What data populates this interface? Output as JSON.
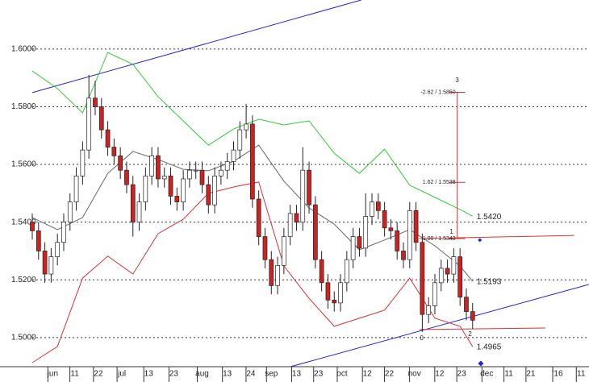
{
  "chart_data": {
    "type": "candlestick",
    "up_color": "#ffffff",
    "down_color": "#cc2222",
    "xlim": [
      0,
      177
    ],
    "ylim": [
      1.4899,
      1.617
    ],
    "yticks": [
      {
        "value": 1.5,
        "label": "1.5000"
      },
      {
        "value": 1.52,
        "label": "1.5200"
      },
      {
        "value": 1.54,
        "label": "1.5400"
      },
      {
        "value": 1.56,
        "label": "1.5600"
      },
      {
        "value": 1.58,
        "label": "1.5800"
      },
      {
        "value": 1.6,
        "label": "1.6000"
      }
    ],
    "xticks": [
      {
        "value": 6.5,
        "label": "jun"
      },
      {
        "value": 13.5,
        "label": "11"
      },
      {
        "value": 21,
        "label": "22"
      },
      {
        "value": 28.5,
        "label": "jul"
      },
      {
        "value": 37,
        "label": "13"
      },
      {
        "value": 45,
        "label": "23"
      },
      {
        "value": 54,
        "label": "aug"
      },
      {
        "value": 62,
        "label": "13"
      },
      {
        "value": 69.5,
        "label": "24"
      },
      {
        "value": 76,
        "label": "sep"
      },
      {
        "value": 84,
        "label": "13"
      },
      {
        "value": 91,
        "label": "23"
      },
      {
        "value": 98.5,
        "label": "oct"
      },
      {
        "value": 106.5,
        "label": "12"
      },
      {
        "value": 113.5,
        "label": "22"
      },
      {
        "value": 121.5,
        "label": "nov"
      },
      {
        "value": 129.5,
        "label": "12"
      },
      {
        "value": 136.5,
        "label": "23"
      },
      {
        "value": 144.5,
        "label": "dec"
      },
      {
        "value": 151.5,
        "label": "11"
      },
      {
        "value": 158.5,
        "label": "21"
      },
      {
        "value": 167,
        "label": "'16"
      },
      {
        "value": 174.5,
        "label": "11"
      }
    ],
    "grid": true,
    "x": [
      0,
      2,
      4,
      6,
      8,
      10,
      12,
      14,
      16,
      18,
      20,
      22,
      24,
      26,
      28,
      30,
      32,
      34,
      36,
      38,
      40,
      42,
      44,
      46,
      48,
      50,
      52,
      54,
      56,
      58,
      60,
      62,
      64,
      66,
      68,
      70,
      72,
      74,
      76,
      78,
      80,
      82,
      84,
      86,
      88,
      90,
      92,
      94,
      96,
      98,
      100,
      102,
      104,
      106,
      108,
      110,
      112,
      114,
      116,
      118,
      120,
      122,
      124,
      126,
      128,
      130,
      132,
      134,
      136,
      138,
      140
    ],
    "open": [
      1.54,
      1.537,
      1.53,
      1.522,
      1.528,
      1.533,
      1.54,
      1.547,
      1.556,
      1.565,
      1.583,
      1.58,
      1.572,
      1.566,
      1.563,
      1.558,
      1.553,
      1.54,
      1.547,
      1.556,
      1.563,
      1.555,
      1.556,
      1.549,
      1.547,
      1.555,
      1.558,
      1.558,
      1.553,
      1.546,
      1.556,
      1.558,
      1.561,
      1.565,
      1.572,
      1.574,
      1.548,
      1.535,
      1.527,
      1.518,
      1.525,
      1.535,
      1.543,
      1.54,
      1.558,
      1.546,
      1.527,
      1.519,
      1.513,
      1.512,
      1.519,
      1.527,
      1.535,
      1.531,
      1.542,
      1.547,
      1.544,
      1.538,
      1.537,
      1.53,
      1.527,
      1.544,
      1.533,
      1.508,
      1.511,
      1.519,
      1.524,
      1.522,
      1.528,
      1.514,
      1.509
    ],
    "high": [
      1.543,
      1.54,
      1.533,
      1.531,
      1.536,
      1.543,
      1.55,
      1.559,
      1.568,
      1.591,
      1.589,
      1.583,
      1.575,
      1.569,
      1.566,
      1.561,
      1.556,
      1.55,
      1.559,
      1.566,
      1.566,
      1.559,
      1.559,
      1.552,
      1.558,
      1.561,
      1.561,
      1.561,
      1.556,
      1.559,
      1.561,
      1.564,
      1.568,
      1.575,
      1.581,
      1.577,
      1.551,
      1.538,
      1.53,
      1.528,
      1.538,
      1.546,
      1.546,
      1.566,
      1.561,
      1.549,
      1.53,
      1.522,
      1.516,
      1.522,
      1.53,
      1.538,
      1.538,
      1.55,
      1.55,
      1.55,
      1.547,
      1.541,
      1.54,
      1.533,
      1.547,
      1.547,
      1.536,
      1.514,
      1.522,
      1.527,
      1.527,
      1.531,
      1.531,
      1.517,
      1.512
    ],
    "low": [
      1.534,
      1.527,
      1.519,
      1.519,
      1.525,
      1.53,
      1.537,
      1.544,
      1.553,
      1.562,
      1.577,
      1.569,
      1.563,
      1.56,
      1.555,
      1.55,
      1.535,
      1.537,
      1.544,
      1.553,
      1.552,
      1.552,
      1.546,
      1.544,
      1.544,
      1.552,
      1.555,
      1.55,
      1.543,
      1.543,
      1.553,
      1.555,
      1.558,
      1.562,
      1.569,
      1.545,
      1.532,
      1.524,
      1.515,
      1.515,
      1.522,
      1.532,
      1.537,
      1.537,
      1.543,
      1.524,
      1.516,
      1.51,
      1.509,
      1.509,
      1.516,
      1.524,
      1.528,
      1.528,
      1.539,
      1.541,
      1.535,
      1.534,
      1.527,
      1.524,
      1.524,
      1.53,
      1.502,
      1.505,
      1.508,
      1.516,
      1.519,
      1.519,
      1.511,
      1.506,
      1.503
    ],
    "close": [
      1.537,
      1.53,
      1.522,
      1.528,
      1.533,
      1.54,
      1.547,
      1.556,
      1.565,
      1.583,
      1.58,
      1.572,
      1.566,
      1.563,
      1.558,
      1.553,
      1.54,
      1.547,
      1.556,
      1.563,
      1.555,
      1.556,
      1.549,
      1.547,
      1.555,
      1.558,
      1.558,
      1.553,
      1.546,
      1.556,
      1.558,
      1.561,
      1.565,
      1.572,
      1.574,
      1.548,
      1.535,
      1.527,
      1.518,
      1.525,
      1.535,
      1.543,
      1.54,
      1.558,
      1.546,
      1.527,
      1.519,
      1.513,
      1.512,
      1.519,
      1.527,
      1.535,
      1.531,
      1.542,
      1.547,
      1.544,
      1.538,
      1.537,
      1.53,
      1.527,
      1.544,
      1.533,
      1.508,
      1.511,
      1.519,
      1.524,
      1.522,
      1.528,
      1.514,
      1.509,
      1.506
    ],
    "overlays": [
      {
        "color": "#33cc33",
        "x": [
          0,
          8,
          16,
          24,
          32,
          40,
          48,
          56,
          64,
          72,
          80,
          88,
          96,
          104,
          112,
          120,
          128,
          136,
          140
        ],
        "values": [
          1.5924,
          1.5863,
          1.5779,
          1.5988,
          1.5947,
          1.5835,
          1.5751,
          1.5667,
          1.5723,
          1.5757,
          1.5737,
          1.5751,
          1.5639,
          1.5569,
          1.5653,
          1.5528,
          1.5486,
          1.5444,
          1.5421
        ],
        "end_label": "1.5420"
      },
      {
        "color": "#666666",
        "x": [
          0,
          8,
          16,
          24,
          32,
          40,
          48,
          56,
          64,
          72,
          80,
          88,
          96,
          104,
          112,
          120,
          128,
          136,
          140
        ],
        "values": [
          1.5416,
          1.5374,
          1.5416,
          1.5569,
          1.5645,
          1.5617,
          1.5583,
          1.5578,
          1.5611,
          1.5667,
          1.5542,
          1.5449,
          1.5393,
          1.5304,
          1.5338,
          1.5374,
          1.5318,
          1.5248,
          1.5195
        ],
        "end_label": "1.5193"
      },
      {
        "color": "#e03030",
        "x": [
          0,
          8,
          16,
          24,
          32,
          40,
          48,
          56,
          64,
          72,
          80,
          88,
          96,
          104,
          112,
          120,
          128,
          136,
          140
        ],
        "values": [
          1.4913,
          1.4969,
          1.5206,
          1.5282,
          1.522,
          1.536,
          1.541,
          1.55,
          1.5522,
          1.5539,
          1.5248,
          1.5136,
          1.5039,
          1.5067,
          1.5095,
          1.5206,
          1.5067,
          1.5039,
          1.4969
        ],
        "end_label": "1.4965"
      }
    ],
    "trend_lines": [
      {
        "color": "#2222dd",
        "x": [
          0,
          104.6
        ],
        "values": [
          1.5849,
          1.617
        ]
      },
      {
        "color": "#2222dd",
        "x": [
          82.1,
          176.9
        ],
        "values": [
          1.4899,
          1.5184
        ]
      },
      {
        "color": "#e03030",
        "x": [
          123.1,
          172.3
        ],
        "values": [
          1.5343,
          1.5354
        ]
      },
      {
        "color": "#e03030",
        "x": [
          123.1,
          163.1
        ],
        "values": [
          1.5028,
          1.5033
        ]
      }
    ],
    "fib_x": 135.1,
    "fib_color": "#e03030",
    "fib_levels": [
      {
        "value": 1.585,
        "label": "-2.62 / 1.5850"
      },
      {
        "value": 1.5538,
        "label": "1.62 / 1.5538"
      },
      {
        "value": 1.5343,
        "label": "1.00 / 1.5343"
      }
    ],
    "wave_points": [
      {
        "label": "3",
        "x": 135.1,
        "y": 1.5891
      },
      {
        "label": "1",
        "x": 133.3,
        "y": 1.5366
      },
      {
        "label": "2",
        "x": 139.2,
        "y": 1.5011
      },
      {
        "label": "0",
        "x": 123.8,
        "y": 1.4997
      }
    ],
    "markers": [
      {
        "color": "#2222dd",
        "x": 142.6,
        "y": 1.491
      },
      {
        "color": "#2222dd",
        "x": 142.3,
        "y": 1.5338
      }
    ]
  }
}
